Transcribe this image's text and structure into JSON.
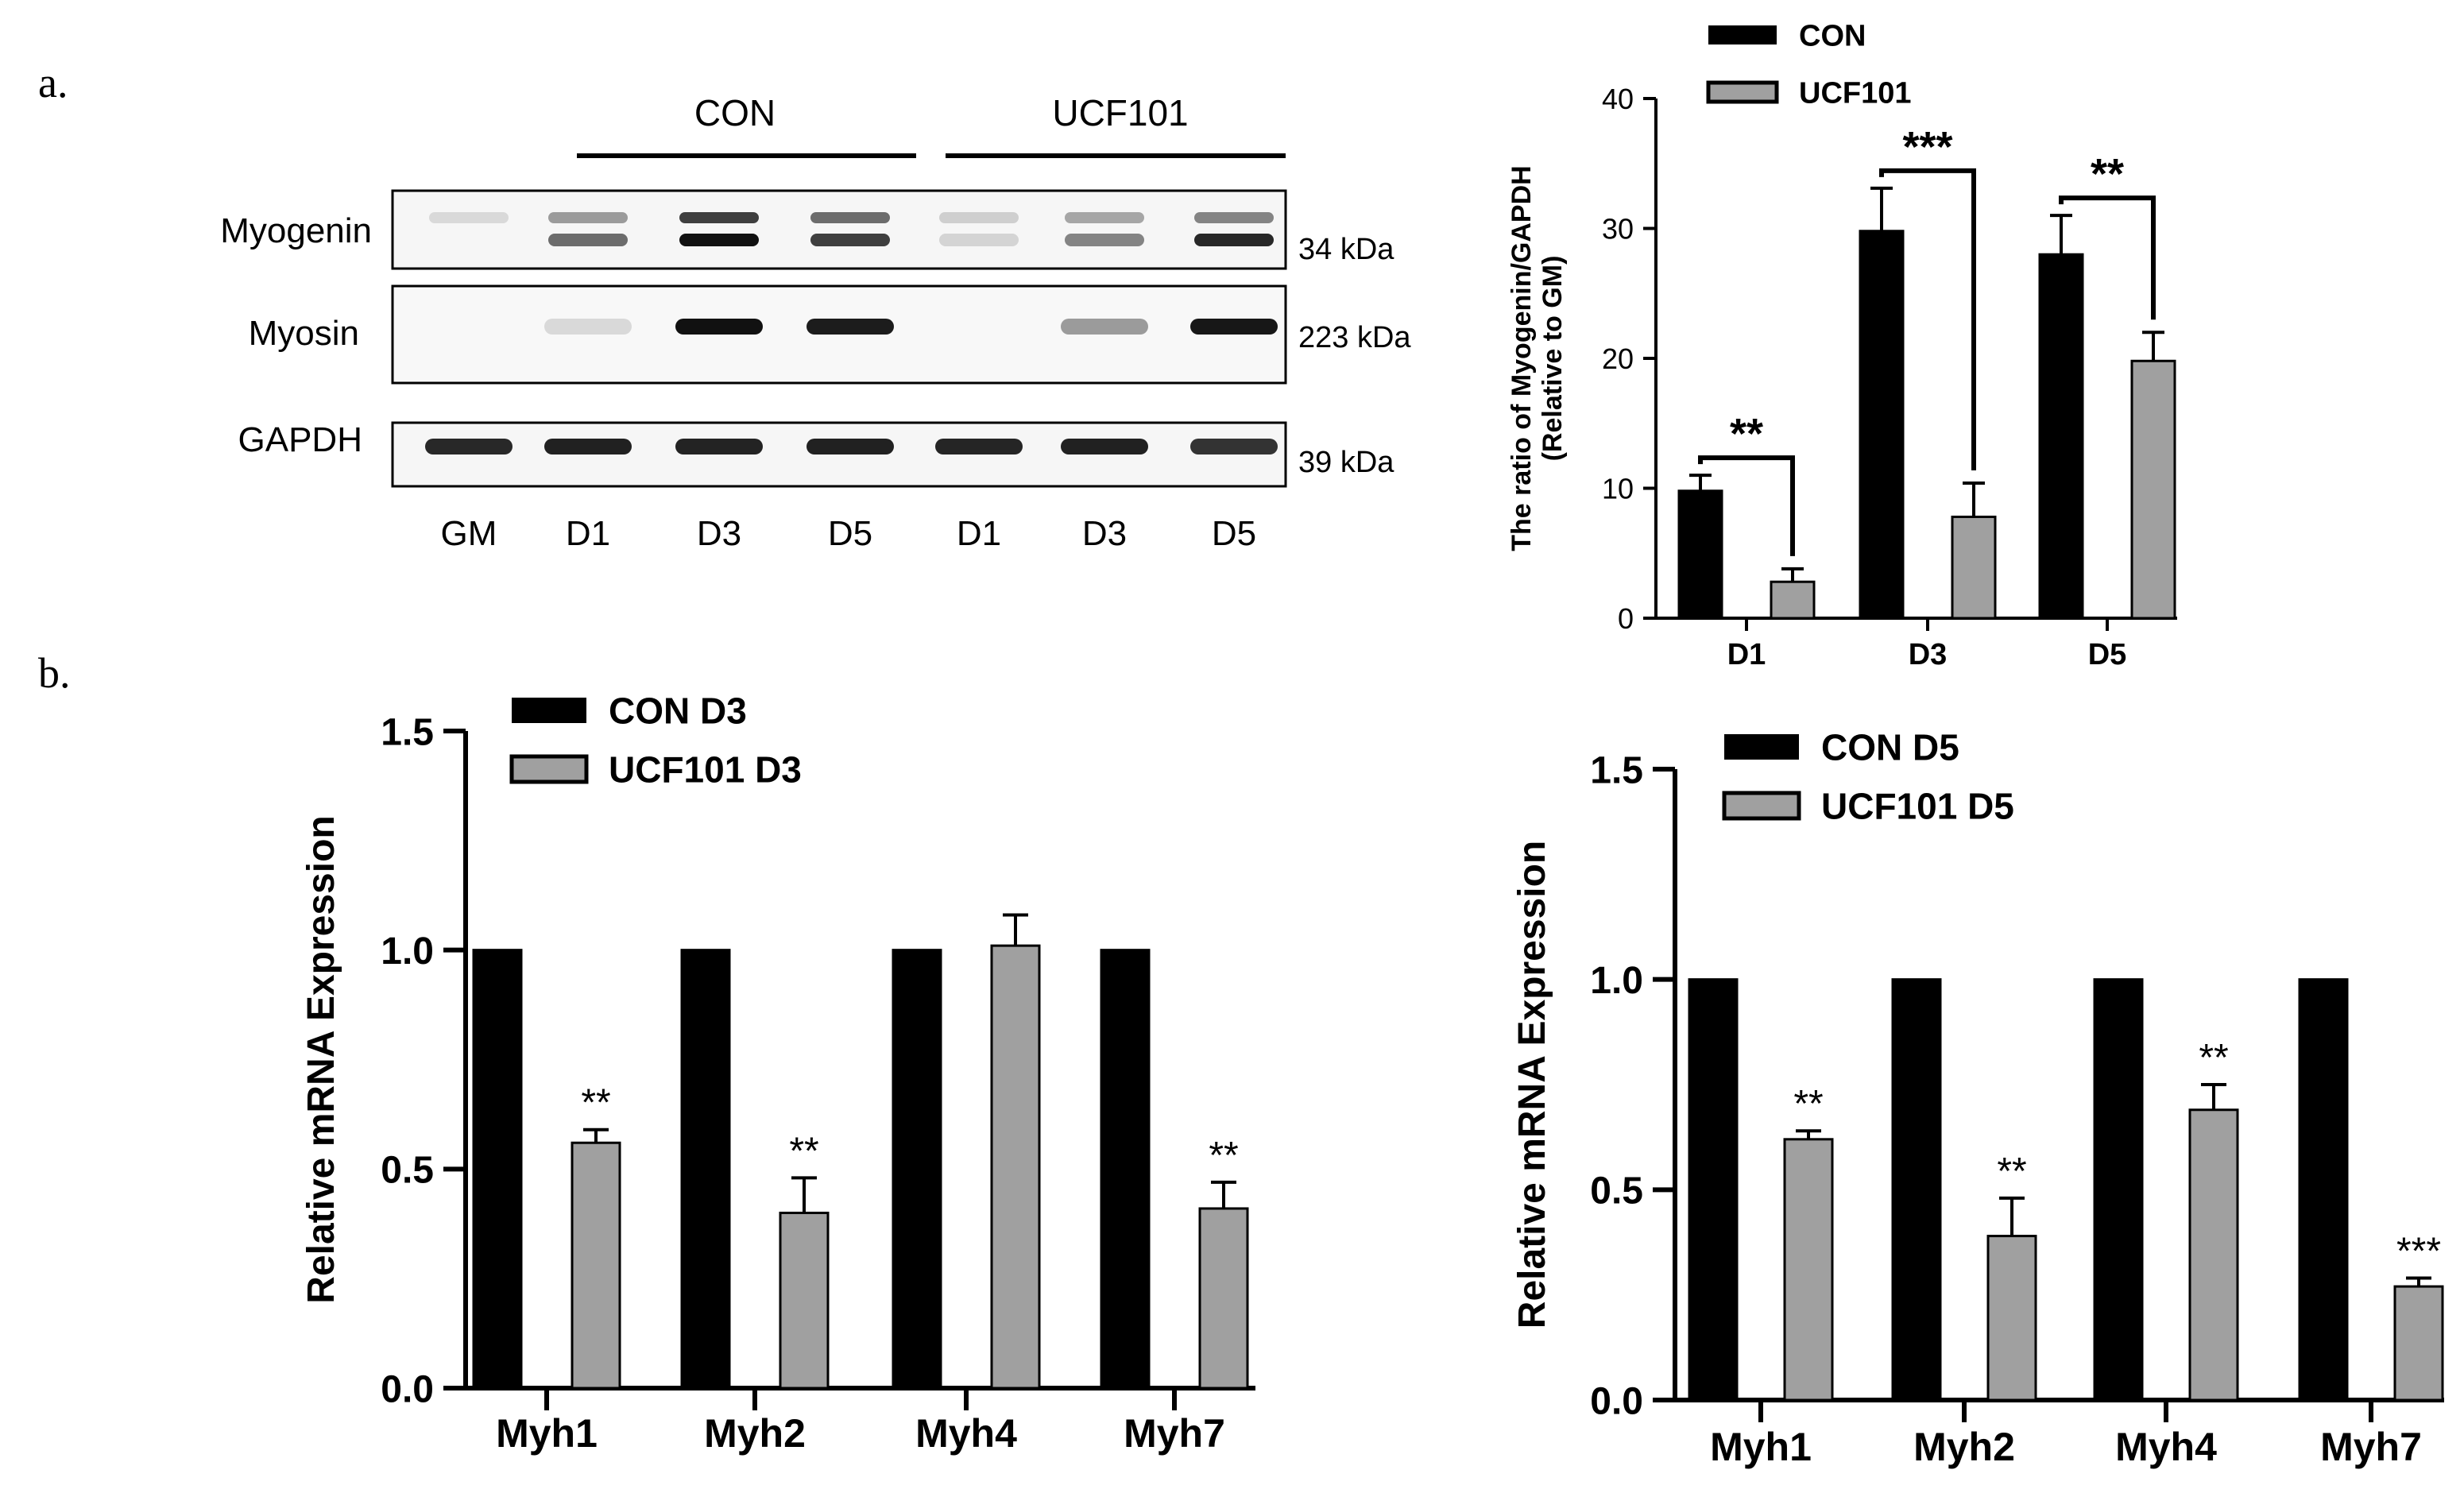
{
  "figure": {
    "panel_a_label": "a.",
    "panel_b_label": "b."
  },
  "western_blot": {
    "group_labels": [
      "CON",
      "UCF101"
    ],
    "row_labels": [
      "Myogenin",
      "Myosin",
      "GAPDH"
    ],
    "size_labels": [
      "34 kDa",
      "223 kDa",
      "39 kDa"
    ],
    "lane_labels": [
      "GM",
      "D1",
      "D3",
      "D5",
      "D1",
      "D3",
      "D5"
    ],
    "band_intensity": {
      "myogenin_upper": [
        0.08,
        0.35,
        0.75,
        0.55,
        0.12,
        0.3,
        0.45
      ],
      "myogenin_lower": [
        0.0,
        0.55,
        0.95,
        0.75,
        0.1,
        0.45,
        0.85
      ],
      "myosin": [
        0.0,
        0.08,
        0.95,
        0.9,
        0.0,
        0.35,
        0.92
      ],
      "gapdh": [
        0.85,
        0.88,
        0.87,
        0.88,
        0.86,
        0.88,
        0.8
      ]
    }
  },
  "chart_data": [
    {
      "id": "myogenin_ratio",
      "type": "bar",
      "title": "",
      "xlabel": "",
      "ylabel_line1": "The ratio of Myogenin/GAPDH",
      "ylabel_line2": "(Relative to GM)",
      "categories": [
        "D1",
        "D3",
        "D5"
      ],
      "series": [
        {
          "name": "CON",
          "values": [
            9.8,
            29.8,
            28.0
          ],
          "errors": [
            1.2,
            3.3,
            3.0
          ],
          "color": "#000000"
        },
        {
          "name": "UCF101",
          "values": [
            2.8,
            7.8,
            19.8
          ],
          "errors": [
            1.0,
            2.6,
            2.2
          ],
          "color": "#a0a0a0"
        }
      ],
      "ylim": [
        0,
        40
      ],
      "yticks": [
        "0",
        "10",
        "20",
        "30",
        "40"
      ],
      "significance": [
        "**",
        "***",
        "**"
      ],
      "legend_position": "top"
    },
    {
      "id": "mrna_d3",
      "type": "bar",
      "title": "",
      "xlabel": "",
      "ylabel": "Relative mRNA Expression",
      "categories": [
        "Myh1",
        "Myh2",
        "Myh4",
        "Myh7"
      ],
      "series": [
        {
          "name": "CON D3",
          "values": [
            1.0,
            1.0,
            1.0,
            1.0
          ],
          "errors": [
            0,
            0,
            0,
            0
          ],
          "color": "#000000"
        },
        {
          "name": "UCF101 D3",
          "values": [
            0.56,
            0.4,
            1.01,
            0.41
          ],
          "errors": [
            0.03,
            0.08,
            0.07,
            0.06
          ],
          "color": "#a0a0a0"
        }
      ],
      "ylim": [
        0,
        1.5
      ],
      "yticks": [
        "0.0",
        "0.5",
        "1.0",
        "1.5"
      ],
      "significance": [
        "**",
        "**",
        "",
        "**"
      ],
      "legend_position": "top"
    },
    {
      "id": "mrna_d5",
      "type": "bar",
      "title": "",
      "xlabel": "",
      "ylabel": "Relative mRNA Expression",
      "categories": [
        "Myh1",
        "Myh2",
        "Myh4",
        "Myh7"
      ],
      "series": [
        {
          "name": "CON D5",
          "values": [
            1.0,
            1.0,
            1.0,
            1.0
          ],
          "errors": [
            0,
            0,
            0,
            0
          ],
          "color": "#000000"
        },
        {
          "name": "UCF101 D5",
          "values": [
            0.62,
            0.39,
            0.69,
            0.27
          ],
          "errors": [
            0.02,
            0.09,
            0.06,
            0.02
          ],
          "color": "#a0a0a0"
        }
      ],
      "ylim": [
        0,
        1.5
      ],
      "yticks": [
        "0.0",
        "0.5",
        "1.0",
        "1.5"
      ],
      "significance": [
        "**",
        "**",
        "**",
        "***"
      ],
      "legend_position": "top"
    }
  ]
}
